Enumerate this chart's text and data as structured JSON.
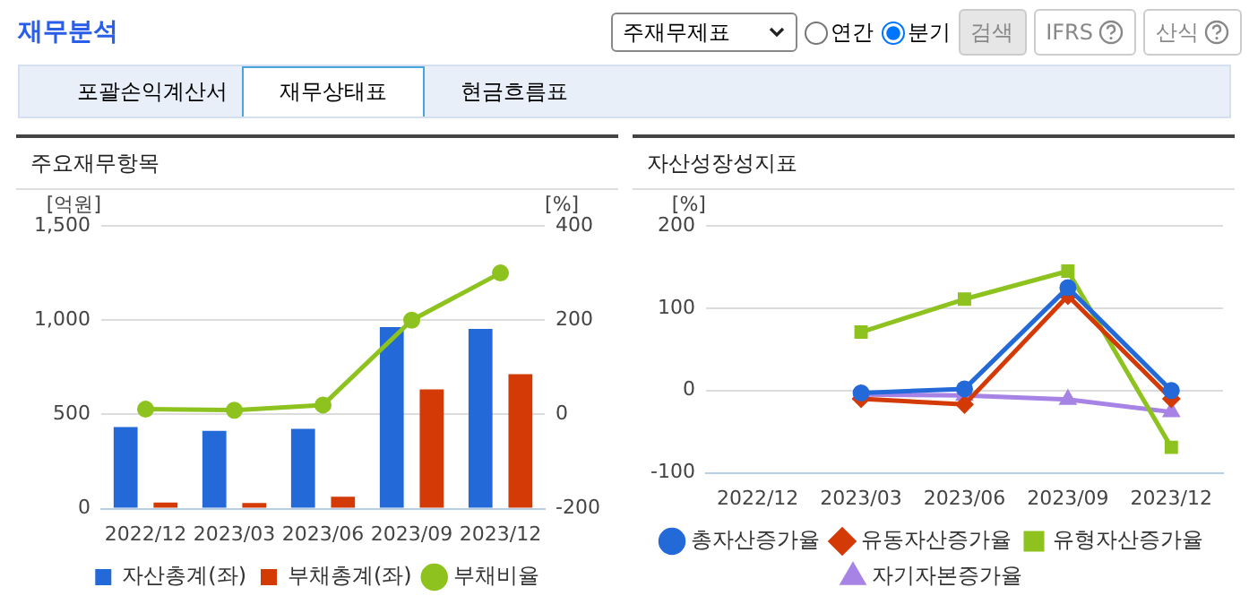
{
  "chart_data": [
    {
      "type": "other",
      "title": "재무분석",
      "annotations": [
        "주재무제표",
        "연간",
        "분기",
        "검색",
        "IFRS",
        "산식",
        "포괄손익계산서",
        "재무상태표",
        "현금흐름표"
      ]
    },
    {
      "type": "bar",
      "title": "주요재무항목",
      "ylabel": "[억원]",
      "y2label": "[%]",
      "categories": [
        "2022/12",
        "2023/03",
        "2023/06",
        "2023/09",
        "2023/12"
      ],
      "series": [
        {
          "name": "자산총계(좌)",
          "color": "#2469d8",
          "values": [
            433,
            413,
            423,
            963,
            953
          ]
        },
        {
          "name": "부채총계(좌)",
          "color": "#d43a06",
          "values": [
            33,
            30,
            63,
            633,
            713
          ]
        },
        {
          "name": "부채비율",
          "type": "line",
          "axis": "y2",
          "color": "#8dc21f",
          "marker": "circle",
          "values": [
            11,
            9,
            20,
            200,
            300
          ]
        }
      ],
      "ylim": [
        0,
        1500
      ],
      "yticks": [
        0,
        500,
        {
          "value": 1000,
          "label": "1,000"
        },
        {
          "value": 1500,
          "label": "1,500"
        }
      ],
      "y2lim": [
        -200,
        400
      ],
      "y2ticks": [
        -200,
        0,
        200,
        400
      ],
      "grid": "y",
      "legend": "bottom"
    },
    {
      "type": "line",
      "title": "자산성장성지표",
      "ylabel": "[%]",
      "categories": [
        "2022/12",
        "2023/03",
        "2023/06",
        "2023/09",
        "2023/12"
      ],
      "series": [
        {
          "name": "총자산증가율",
          "color": "#2469d8",
          "marker": "circle",
          "values": [
            null,
            -3,
            2,
            125,
            0
          ]
        },
        {
          "name": "유동자산증가율",
          "color": "#d43a06",
          "marker": "diamond",
          "values": [
            null,
            -10,
            -17,
            115,
            -10
          ]
        },
        {
          "name": "유형자산증가율",
          "color": "#8dc21f",
          "marker": "square",
          "values": [
            null,
            71,
            111,
            145,
            -69
          ]
        },
        {
          "name": "자기자본증가율",
          "color": "#a883e6",
          "marker": "triangle",
          "values": [
            null,
            -5,
            -6,
            -11,
            -26
          ]
        }
      ],
      "ylim": [
        -100,
        200
      ],
      "yticks": [
        -100,
        0,
        100,
        200
      ],
      "grid": "y",
      "legend": "bottom"
    }
  ]
}
